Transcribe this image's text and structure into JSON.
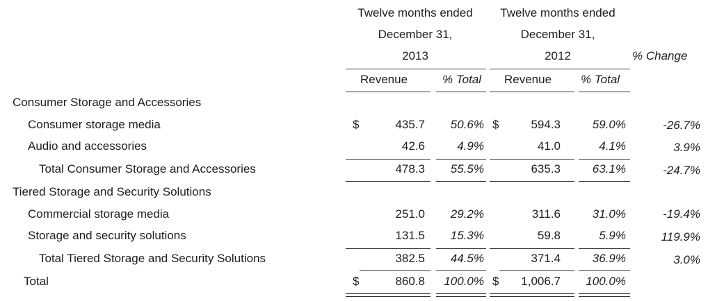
{
  "header": {
    "period1": {
      "line1": "Twelve months ended",
      "line2": "December 31,",
      "year": "2013"
    },
    "period2": {
      "line1": "Twelve months ended",
      "line2": "December 31,",
      "year": "2012"
    },
    "change": "% Change",
    "revenue": "Revenue",
    "pct_total": "% Total"
  },
  "rows": [
    {
      "label": "Consumer Storage and Accessories",
      "cur": "",
      "rev13": "",
      "pct13": "",
      "cur12": "",
      "rev12": "",
      "pct12": "",
      "chg": ""
    },
    {
      "label": "Consumer storage media",
      "cur": "$",
      "rev13": "435.7",
      "pct13": "50.6%",
      "cur12": "$",
      "rev12": "594.3",
      "pct12": "59.0%",
      "chg": "-26.7%"
    },
    {
      "label": "Audio and accessories",
      "cur": "",
      "rev13": "42.6",
      "pct13": "4.9%",
      "cur12": "",
      "rev12": "41.0",
      "pct12": "4.1%",
      "chg": "3.9%"
    },
    {
      "label": "Total Consumer Storage and Accessories",
      "cur": "",
      "rev13": "478.3",
      "pct13": "55.5%",
      "cur12": "",
      "rev12": "635.3",
      "pct12": "63.1%",
      "chg": "-24.7%"
    },
    {
      "label": "Tiered Storage and Security Solutions",
      "cur": "",
      "rev13": "",
      "pct13": "",
      "cur12": "",
      "rev12": "",
      "pct12": "",
      "chg": ""
    },
    {
      "label": "Commercial storage media",
      "cur": "",
      "rev13": "251.0",
      "pct13": "29.2%",
      "cur12": "",
      "rev12": "311.6",
      "pct12": "31.0%",
      "chg": "-19.4%"
    },
    {
      "label": "Storage and security solutions",
      "cur": "",
      "rev13": "131.5",
      "pct13": "15.3%",
      "cur12": "",
      "rev12": "59.8",
      "pct12": "5.9%",
      "chg": "119.9%"
    },
    {
      "label": "Total Tiered Storage and Security Solutions",
      "cur": "",
      "rev13": "382.5",
      "pct13": "44.5%",
      "cur12": "",
      "rev12": "371.4",
      "pct12": "36.9%",
      "chg": "3.0%"
    },
    {
      "label": "Total",
      "cur": "$",
      "rev13": "860.8",
      "pct13": "100.0%",
      "cur12": "$",
      "rev12": "1,006.7",
      "pct12": "100.0%",
      "chg": ""
    }
  ]
}
